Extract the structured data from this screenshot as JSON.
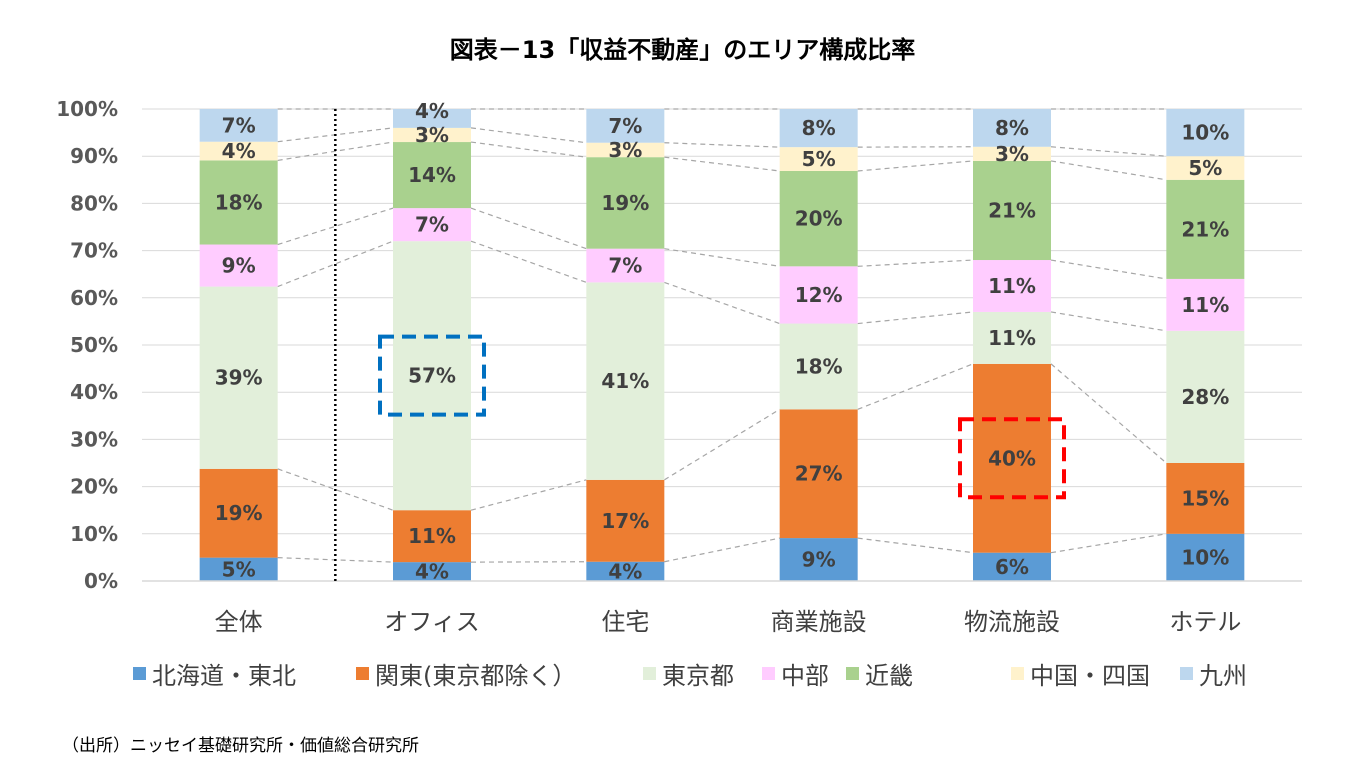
{
  "chart_data": {
    "type": "bar",
    "stacked": true,
    "title": "図表－13「収益不動産」のエリア構成比率",
    "categories": [
      "全体",
      "オフィス",
      "住宅",
      "商業施設",
      "物流施設",
      "ホテル"
    ],
    "ylim": [
      0,
      100
    ],
    "y_ticks": [
      "0%",
      "10%",
      "20%",
      "30%",
      "40%",
      "50%",
      "60%",
      "70%",
      "80%",
      "90%",
      "100%"
    ],
    "grid": true,
    "legend_position": "bottom",
    "series": [
      {
        "name": "北海道・東北",
        "color": "#5B9BD5",
        "values": [
          5,
          4,
          4,
          9,
          6,
          10
        ]
      },
      {
        "name": "関東(東京都除く）",
        "color": "#ED7D31",
        "values": [
          19,
          11,
          17,
          27,
          40,
          15
        ]
      },
      {
        "name": "東京都",
        "color": "#E2EFDA",
        "values": [
          39,
          57,
          41,
          18,
          11,
          28
        ]
      },
      {
        "name": "中部",
        "color": "#FFCCFF",
        "values": [
          9,
          7,
          7,
          12,
          11,
          11
        ]
      },
      {
        "name": "近畿",
        "color": "#A9D18E",
        "values": [
          18,
          14,
          19,
          20,
          21,
          21
        ]
      },
      {
        "name": "中国・四国",
        "color": "#FFF2CC",
        "values": [
          4,
          3,
          3,
          5,
          3,
          5
        ]
      },
      {
        "name": "九州",
        "color": "#BDD7EE",
        "values": [
          7,
          4,
          7,
          8,
          8,
          10
        ]
      }
    ],
    "highlights": [
      {
        "category": "オフィス",
        "series": "東京都",
        "color": "#0070C0"
      },
      {
        "category": "物流施設",
        "series": "関東(東京都除く）",
        "color": "#FF0000"
      }
    ],
    "separator_after": "全体"
  },
  "source": "（出所）ニッセイ基礎研究所・価値総合研究所"
}
